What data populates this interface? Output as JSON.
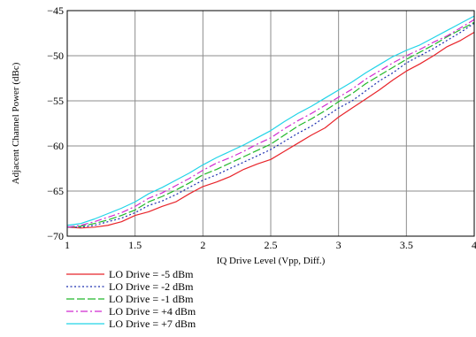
{
  "chart_data": {
    "type": "line",
    "xlabel": "IQ Drive Level (Vpp, Diff.)",
    "ylabel": "Adjacent Channel Power (dBc)",
    "xlim": [
      1,
      4
    ],
    "ylim": [
      -70,
      -45
    ],
    "xticks": [
      1,
      1.5,
      2,
      2.5,
      3,
      3.5,
      4
    ],
    "xtick_labels": [
      "1",
      "1.5",
      "2",
      "2.5",
      "3",
      "3.5",
      "4"
    ],
    "yticks": [
      -70,
      -65,
      -60,
      -55,
      -50,
      -45
    ],
    "ytick_labels": [
      "−70",
      "−65",
      "−60",
      "−55",
      "−50",
      "−45"
    ],
    "grid": true,
    "legend_position": "bottom-left",
    "x": [
      1.0,
      1.1,
      1.2,
      1.3,
      1.4,
      1.5,
      1.6,
      1.7,
      1.8,
      1.9,
      2.0,
      2.1,
      2.2,
      2.3,
      2.4,
      2.5,
      2.6,
      2.7,
      2.8,
      2.9,
      3.0,
      3.1,
      3.2,
      3.3,
      3.4,
      3.5,
      3.6,
      3.7,
      3.8,
      3.9,
      4.0
    ],
    "series": [
      {
        "name": "LO Drive = -5 dBm",
        "color": "#e8242a",
        "dash": "solid",
        "values": [
          -69.0,
          -69.1,
          -69.0,
          -68.8,
          -68.4,
          -67.7,
          -67.3,
          -66.7,
          -66.2,
          -65.3,
          -64.5,
          -64.0,
          -63.4,
          -62.6,
          -62.0,
          -61.5,
          -60.6,
          -59.7,
          -58.8,
          -58.0,
          -56.8,
          -55.8,
          -54.8,
          -53.8,
          -52.7,
          -51.7,
          -50.9,
          -50.0,
          -49.0,
          -48.3,
          -47.4
        ]
      },
      {
        "name": "LO Drive = -2 dBm",
        "color": "#1c2fb0",
        "dash": "dot",
        "values": [
          -69.0,
          -69.0,
          -68.8,
          -68.4,
          -68.0,
          -67.4,
          -66.6,
          -66.1,
          -65.4,
          -64.6,
          -63.8,
          -63.2,
          -62.5,
          -61.8,
          -61.1,
          -60.4,
          -59.5,
          -58.6,
          -57.8,
          -56.8,
          -55.8,
          -55.0,
          -53.9,
          -52.8,
          -51.9,
          -50.8,
          -50.0,
          -49.2,
          -48.3,
          -47.4,
          -46.4
        ]
      },
      {
        "name": "LO Drive = -1 dBm",
        "color": "#22b82a",
        "dash": "dashlong",
        "values": [
          -69.0,
          -68.9,
          -68.6,
          -68.2,
          -67.7,
          -67.1,
          -66.2,
          -65.6,
          -64.9,
          -64.1,
          -63.2,
          -62.6,
          -61.9,
          -61.2,
          -60.5,
          -59.8,
          -58.8,
          -57.8,
          -57.0,
          -56.1,
          -55.1,
          -54.2,
          -53.1,
          -52.2,
          -51.3,
          -50.4,
          -49.6,
          -48.8,
          -47.9,
          -47.1,
          -46.3
        ]
      },
      {
        "name": "LO Drive = +4 dBm",
        "color": "#d12ad0",
        "dash": "dashdot",
        "values": [
          -69.0,
          -68.8,
          -68.4,
          -67.9,
          -67.4,
          -66.7,
          -65.8,
          -65.2,
          -64.4,
          -63.6,
          -62.7,
          -61.9,
          -61.3,
          -60.6,
          -59.8,
          -59.1,
          -58.1,
          -57.2,
          -56.4,
          -55.5,
          -54.6,
          -53.7,
          -52.6,
          -51.7,
          -50.8,
          -50.0,
          -49.3,
          -48.5,
          -47.8,
          -46.9,
          -46.0
        ]
      },
      {
        "name": "LO Drive = +7 dBm",
        "color": "#22d4e8",
        "dash": "solid",
        "values": [
          -68.8,
          -68.6,
          -68.1,
          -67.5,
          -66.9,
          -66.2,
          -65.3,
          -64.6,
          -63.8,
          -63.0,
          -62.1,
          -61.3,
          -60.6,
          -59.9,
          -59.1,
          -58.3,
          -57.3,
          -56.4,
          -55.6,
          -54.7,
          -53.8,
          -52.9,
          -51.9,
          -51.0,
          -50.1,
          -49.4,
          -48.8,
          -48.0,
          -47.2,
          -46.4,
          -45.6
        ]
      }
    ]
  }
}
